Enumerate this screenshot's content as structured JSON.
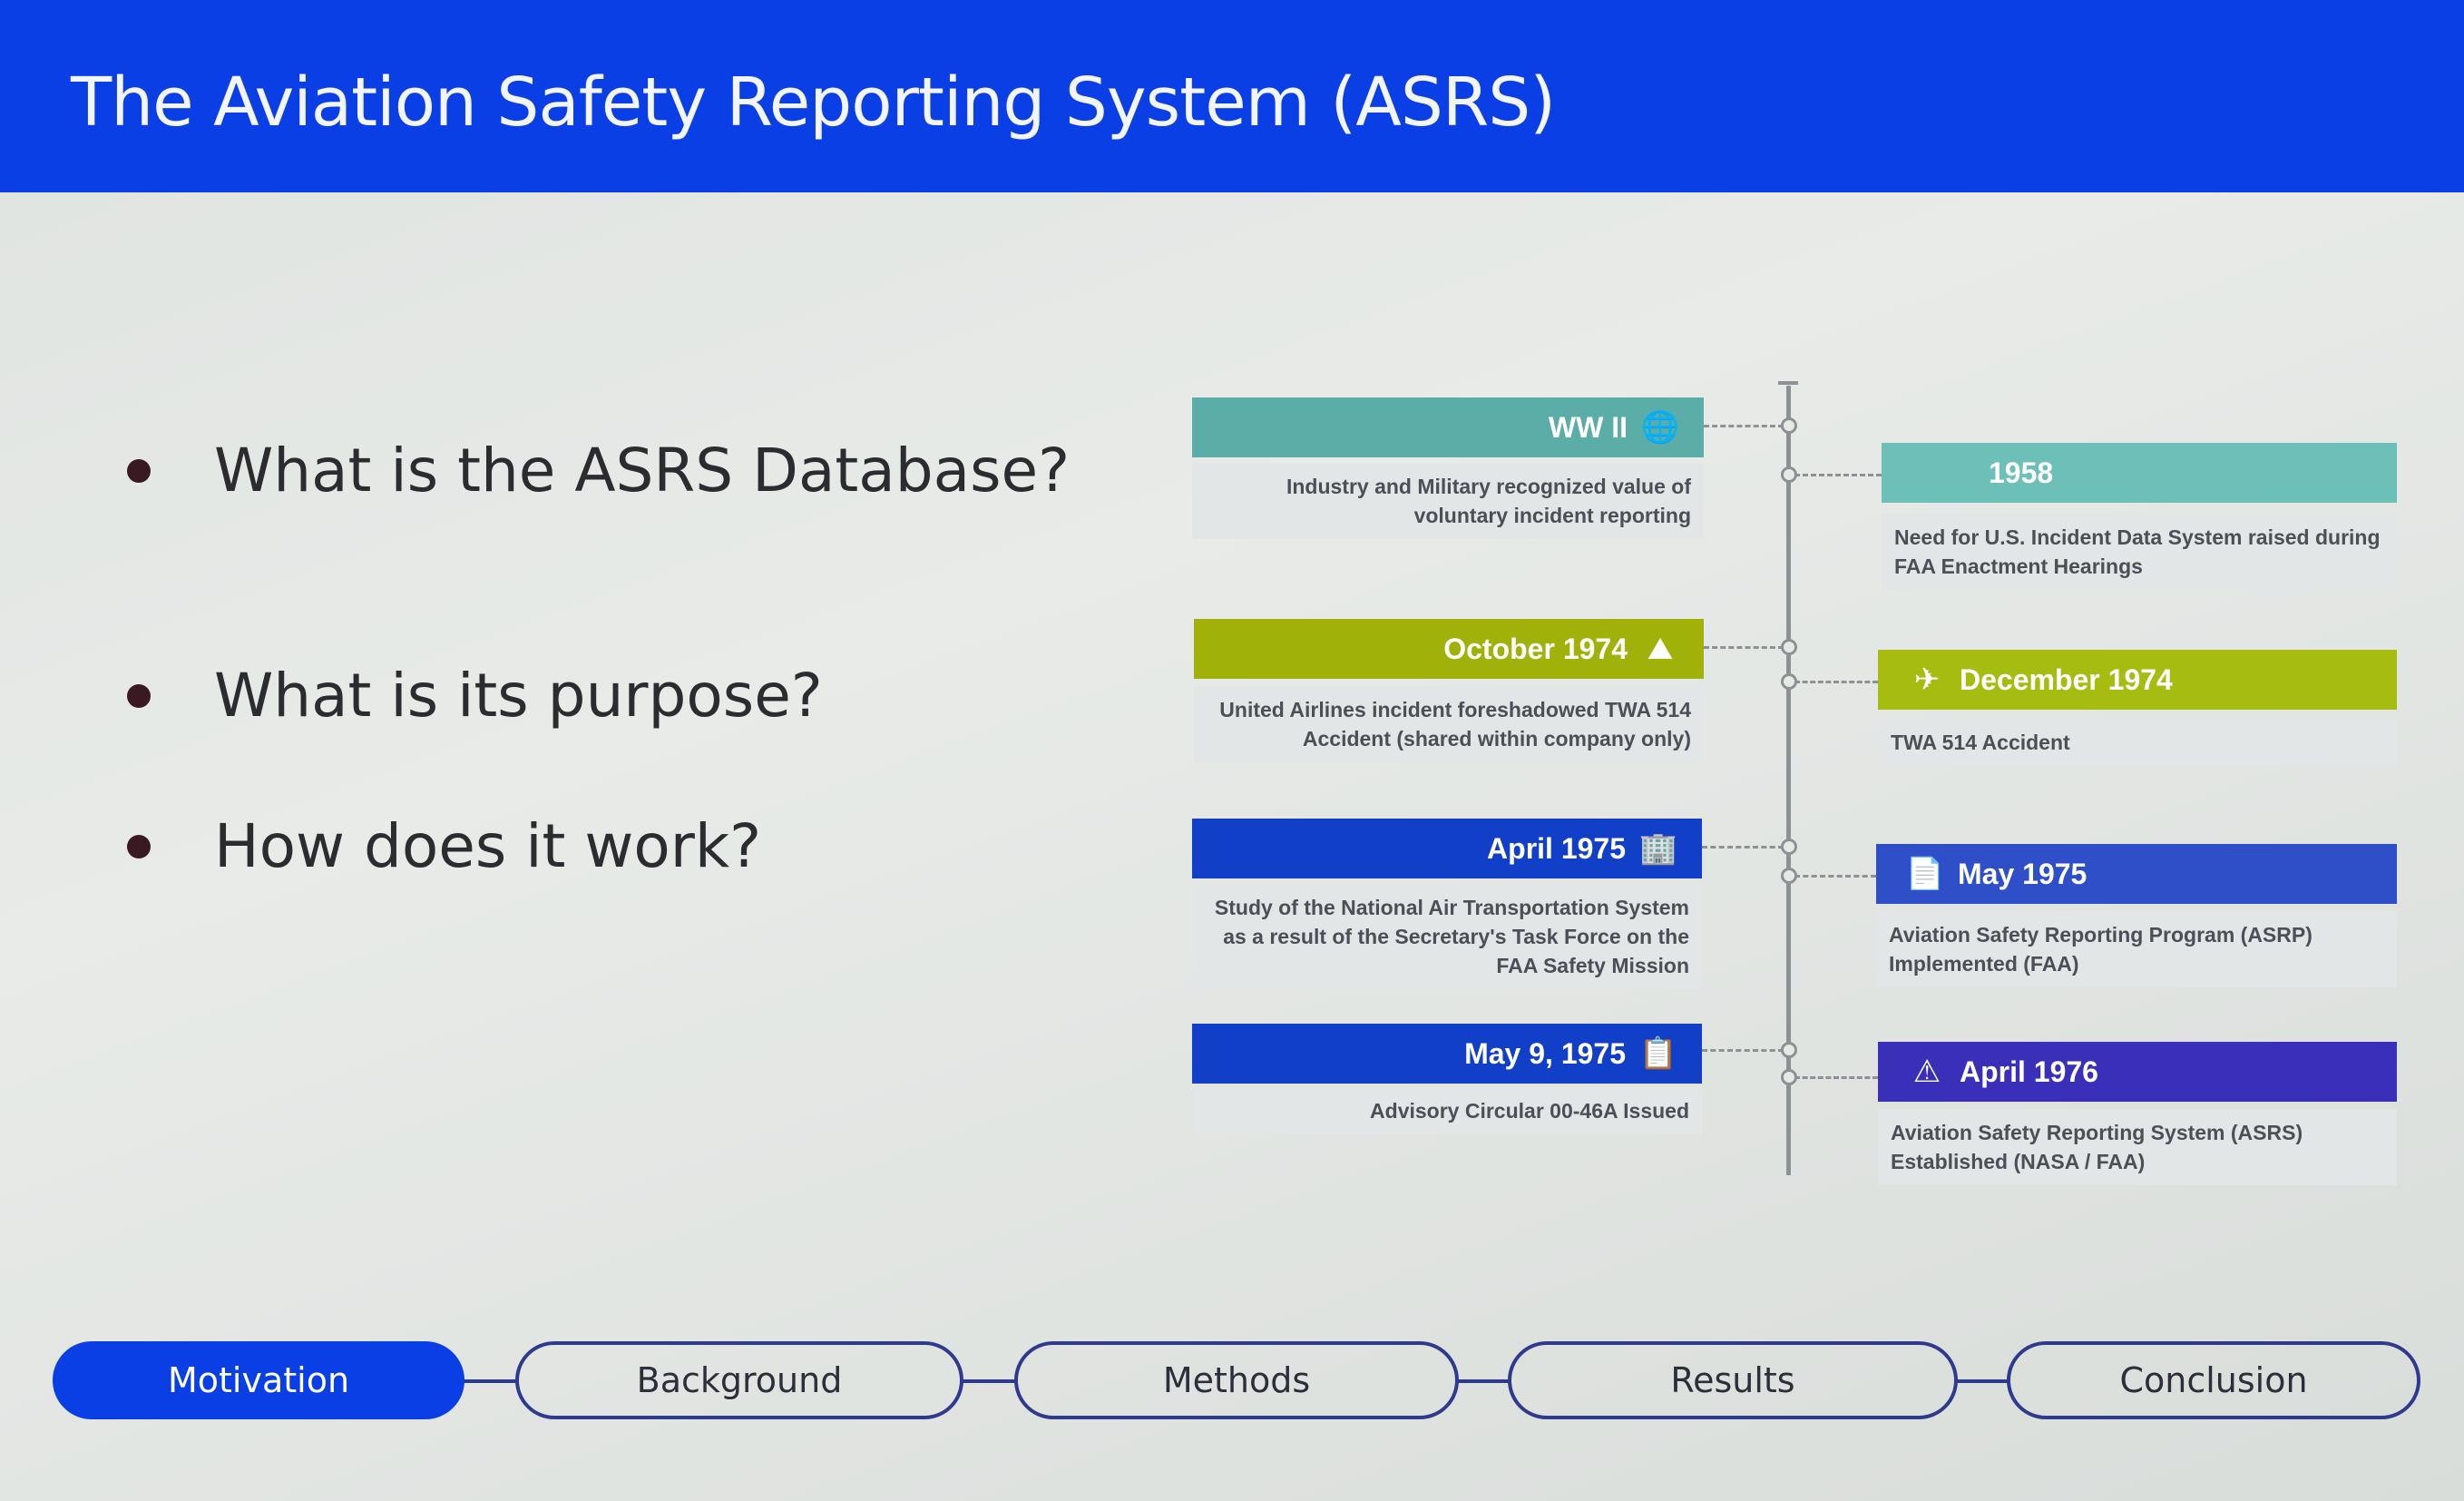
{
  "header": {
    "title": "The Aviation Safety Reporting System (ASRS)"
  },
  "bullets": [
    "What is the ASRS Database?",
    "What is its purpose?",
    "How does it work?"
  ],
  "timeline": {
    "left": [
      {
        "label": "WW II",
        "icon": "globe-icon",
        "color": "#5aaea7",
        "desc": "Industry and Military recognized value of voluntary incident reporting"
      },
      {
        "label": "October 1974",
        "icon": "mountain-icon",
        "color": "#a0b20a",
        "desc": "United Airlines incident foreshadowed TWA 514 Accident (shared within company only)"
      },
      {
        "label": "April 1975",
        "icon": "building-icon",
        "color": "#123fc8",
        "desc": "Study of the National Air Transportation System as a result of the Secretary's Task Force on the FAA Safety Mission"
      },
      {
        "label": "May 9, 1975",
        "icon": "clipboard-icon",
        "color": "#123fc8",
        "desc": "Advisory Circular 00-46A Issued"
      }
    ],
    "right": [
      {
        "label": "1958",
        "icon": "",
        "color": "#6cc0b8",
        "desc": "Need for U.S. Incident Data System raised during FAA Enactment Hearings"
      },
      {
        "label": "December 1974",
        "icon": "airplane-landing-icon",
        "color": "#a6bc10",
        "desc": "TWA 514 Accident"
      },
      {
        "label": "May 1975",
        "icon": "document-icon",
        "color": "#2f4fc8",
        "desc": "Aviation Safety Reporting Program (ASRP) Implemented (FAA)"
      },
      {
        "label": "April 1976",
        "icon": "warning-cone-icon",
        "color": "#3a2fb8",
        "desc": "Aviation Safety Reporting System (ASRS) Established (NASA / FAA)"
      }
    ]
  },
  "nav": [
    {
      "label": "Motivation",
      "active": true
    },
    {
      "label": "Background",
      "active": false
    },
    {
      "label": "Methods",
      "active": false
    },
    {
      "label": "Results",
      "active": false
    },
    {
      "label": "Conclusion",
      "active": false
    }
  ]
}
